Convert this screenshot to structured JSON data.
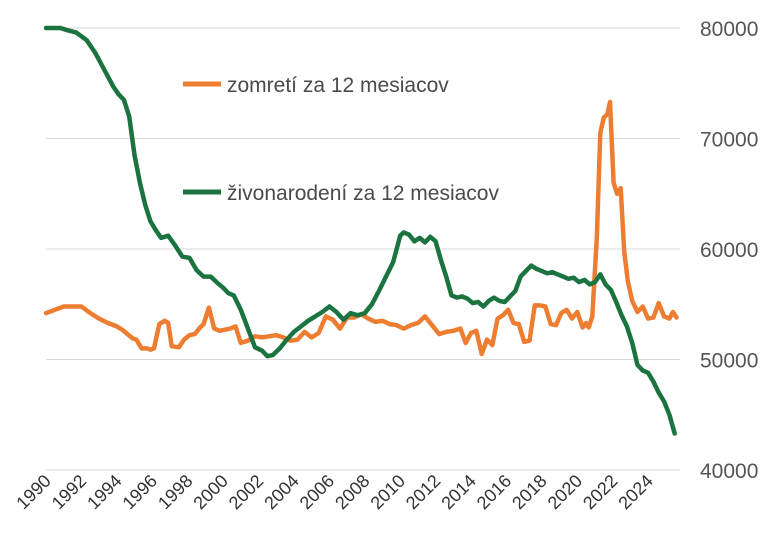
{
  "chart_data": {
    "type": "line",
    "title": "",
    "xlabel": "",
    "ylabel": "",
    "xlim": [
      1990,
      2025.8
    ],
    "ylim": [
      40000,
      80000
    ],
    "y_ticks": [
      40000,
      50000,
      60000,
      70000,
      80000
    ],
    "y_tick_labels": [
      "40000",
      "50000",
      "60000",
      "70000",
      "80000"
    ],
    "x_ticks": [
      1990,
      1992,
      1994,
      1996,
      1998,
      2000,
      2002,
      2004,
      2006,
      2008,
      2010,
      2012,
      2014,
      2016,
      2018,
      2020,
      2022,
      2024
    ],
    "x_tick_labels": [
      "1990",
      "1992",
      "1994",
      "1996",
      "1998",
      "2000",
      "2002",
      "2004",
      "2006",
      "2008",
      "2010",
      "2012",
      "2014",
      "2016",
      "2018",
      "2020",
      "2022",
      "2024"
    ],
    "grid": "horizontal",
    "y_axis_side": "right",
    "legend_placement": "inside-top-center",
    "series": [
      {
        "name": "zomretí za 12 mesiacov",
        "color": "#ED7D31",
        "x": [
          1990.0,
          1990.5,
          1991.0,
          1991.5,
          1992.0,
          1992.5,
          1993.0,
          1993.5,
          1994.0,
          1994.3,
          1994.6,
          1994.9,
          1995.1,
          1995.4,
          1995.7,
          1995.9,
          1996.1,
          1996.4,
          1996.7,
          1996.9,
          1997.1,
          1997.5,
          1997.8,
          1998.1,
          1998.4,
          1998.7,
          1998.9,
          1999.2,
          1999.5,
          1999.8,
          2000.1,
          2000.4,
          2000.7,
          2001.0,
          2001.4,
          2001.8,
          2002.2,
          2002.6,
          2003.0,
          2003.4,
          2003.8,
          2004.2,
          2004.6,
          2005.0,
          2005.4,
          2005.8,
          2006.2,
          2006.6,
          2007.0,
          2007.4,
          2007.8,
          2008.2,
          2008.6,
          2009.0,
          2009.4,
          2009.8,
          2010.2,
          2010.6,
          2011.0,
          2011.4,
          2011.8,
          2012.2,
          2012.6,
          2013.0,
          2013.4,
          2013.7,
          2014.0,
          2014.3,
          2014.6,
          2014.9,
          2015.2,
          2015.5,
          2015.8,
          2016.1,
          2016.4,
          2016.7,
          2017.0,
          2017.3,
          2017.6,
          2017.9,
          2018.2,
          2018.5,
          2018.8,
          2019.1,
          2019.4,
          2019.7,
          2020.0,
          2020.3,
          2020.5,
          2020.65,
          2020.85,
          2021.1,
          2021.3,
          2021.5,
          2021.7,
          2021.85,
          2022.05,
          2022.25,
          2022.45,
          2022.65,
          2022.85,
          2023.1,
          2023.4,
          2023.7,
          2024.0,
          2024.3,
          2024.6,
          2024.9,
          2025.2,
          2025.4,
          2025.6
        ],
        "y": [
          54200,
          54500,
          54800,
          54800,
          54800,
          54200,
          53700,
          53300,
          53000,
          52700,
          52300,
          51900,
          51800,
          51000,
          51000,
          50900,
          51000,
          53200,
          53500,
          53300,
          51200,
          51100,
          51800,
          52200,
          52300,
          52900,
          53200,
          54700,
          52800,
          52600,
          52700,
          52800,
          53000,
          51500,
          51700,
          52100,
          52000,
          52100,
          52200,
          52000,
          51700,
          51800,
          52500,
          52000,
          52400,
          53900,
          53600,
          52800,
          53800,
          53800,
          54100,
          53700,
          53400,
          53500,
          53200,
          53100,
          52800,
          53100,
          53300,
          53900,
          53100,
          52300,
          52500,
          52600,
          52800,
          51500,
          52400,
          52600,
          50500,
          51800,
          51300,
          53700,
          54000,
          54500,
          53300,
          53200,
          51600,
          51700,
          54900,
          54900,
          54800,
          53200,
          53100,
          54200,
          54500,
          53700,
          54300,
          52900,
          53300,
          52900,
          53900,
          61000,
          70500,
          71900,
          72200,
          73300,
          66000,
          65000,
          65500,
          59800,
          57100,
          55300,
          54300,
          54800,
          53700,
          53800,
          55100,
          53900,
          53700,
          54300,
          53800
        ]
      },
      {
        "name": "živonarodení za 12 mesiacov",
        "color": "#1B7340",
        "x": [
          1990.0,
          1990.8,
          1991.2,
          1991.7,
          1992.3,
          1992.8,
          1993.3,
          1993.8,
          1994.1,
          1994.4,
          1994.7,
          1995.0,
          1995.3,
          1995.6,
          1995.9,
          1996.2,
          1996.5,
          1996.9,
          1997.3,
          1997.7,
          1998.1,
          1998.5,
          1998.9,
          1999.3,
          1999.7,
          2000.0,
          2000.3,
          2000.6,
          2001.0,
          2001.4,
          2001.8,
          2002.2,
          2002.5,
          2002.8,
          2003.2,
          2003.6,
          2004.0,
          2004.4,
          2004.8,
          2005.2,
          2005.6,
          2006.0,
          2006.4,
          2006.8,
          2007.2,
          2007.6,
          2008.0,
          2008.4,
          2008.8,
          2009.2,
          2009.6,
          2010.0,
          2010.2,
          2010.5,
          2010.8,
          2011.1,
          2011.4,
          2011.7,
          2012.0,
          2012.3,
          2012.6,
          2012.9,
          2013.2,
          2013.5,
          2013.8,
          2014.1,
          2014.4,
          2014.7,
          2015.0,
          2015.3,
          2015.6,
          2015.9,
          2016.2,
          2016.5,
          2016.8,
          2017.1,
          2017.4,
          2017.7,
          2018.0,
          2018.3,
          2018.6,
          2018.9,
          2019.2,
          2019.5,
          2019.8,
          2020.1,
          2020.4,
          2020.7,
          2021.0,
          2021.3,
          2021.6,
          2021.9,
          2022.2,
          2022.5,
          2022.8,
          2023.1,
          2023.4,
          2023.7,
          2024.0,
          2024.3,
          2024.6,
          2024.9,
          2025.2,
          2025.5
        ],
        "y": [
          80000,
          80000,
          79800,
          79600,
          78900,
          77700,
          76200,
          74700,
          74000,
          73500,
          72000,
          68500,
          66000,
          64000,
          62500,
          61700,
          61000,
          61200,
          60300,
          59300,
          59200,
          58100,
          57500,
          57500,
          56900,
          56500,
          56000,
          55800,
          54500,
          52800,
          51100,
          50800,
          50300,
          50400,
          51000,
          51800,
          52500,
          53000,
          53500,
          53900,
          54300,
          54800,
          54300,
          53600,
          54200,
          54000,
          54200,
          55000,
          56200,
          57500,
          58800,
          61200,
          61500,
          61300,
          60700,
          61000,
          60600,
          61100,
          60700,
          59000,
          57500,
          55800,
          55600,
          55700,
          55500,
          55100,
          55200,
          54800,
          55300,
          55600,
          55300,
          55200,
          55700,
          56200,
          57500,
          58000,
          58500,
          58200,
          58000,
          57800,
          57900,
          57700,
          57500,
          57300,
          57400,
          57000,
          57200,
          56800,
          57000,
          57700,
          56800,
          56300,
          55200,
          54000,
          53000,
          51500,
          49500,
          49000,
          48800,
          48000,
          47000,
          46200,
          45000,
          43300
        ]
      }
    ]
  }
}
